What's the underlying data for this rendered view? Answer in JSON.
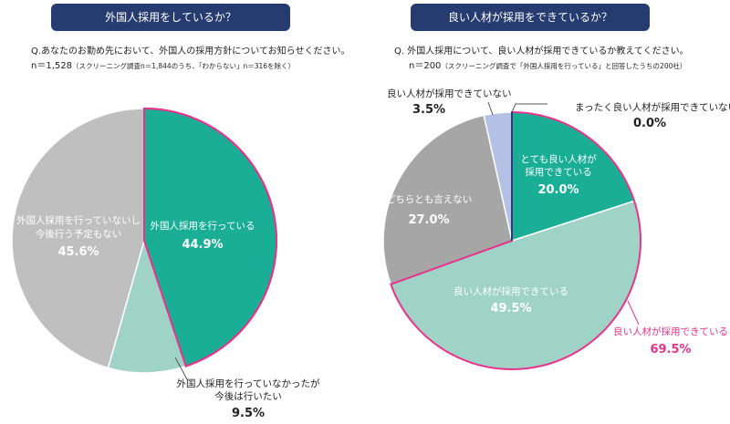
{
  "chart_data": [
    {
      "type": "pie",
      "title": "外国人採用をしているか？",
      "question": "Q.あなたのお勤め先において、外国人の採用方針についてお知らせください。",
      "n_main": "n＝1,528",
      "n_note": "（スクリーニング調査n＝1,844のうち、「わからない」n＝316を除く）",
      "slices": [
        {
          "label": "外国人採用を行っている",
          "value": 44.9,
          "value_text": "44.9%",
          "color": "#1aae96"
        },
        {
          "label": "外国人採用を行っていなかったが今後は行いたい",
          "value": 9.5,
          "value_text": "9.5%",
          "color": "#9fd3c5"
        },
        {
          "label": "外国人採用を行っていないし今後行う予定もない",
          "value": 45.6,
          "value_text": "45.6%",
          "color": "#bfbfbf"
        }
      ],
      "highlight_color": "#e6338c"
    },
    {
      "type": "pie",
      "title": "良い人材が採用をできているか？",
      "question": "Q.  外国人採用について、良い人材が採用できているか教えてください。",
      "n_main": "n＝200",
      "n_note": "（スクリーニング調査で「外国人採用を行っている」と回答したうちの200社）",
      "slices": [
        {
          "label": "まったく良い人材が採用できていない",
          "value": 0.0,
          "value_text": "0.0%",
          "color": "#2a3a7a"
        },
        {
          "label": "とても良い人材が採用できている",
          "value": 20.0,
          "value_text": "20.0%",
          "color": "#1aae96"
        },
        {
          "label": "良い人材が採用できている",
          "value": 49.5,
          "value_text": "49.5%",
          "color": "#9fd3c5"
        },
        {
          "label": "どちらとも言えない",
          "value": 27.0,
          "value_text": "27.0%",
          "color": "#a6a6a6"
        },
        {
          "label": "良い人材が採用できていない",
          "value": 3.5,
          "value_text": "3.5%",
          "color": "#b4c0e4"
        }
      ],
      "group_label": "良い人材が採用できている",
      "group_value_text": "69.5%",
      "highlight_color": "#e6338c"
    }
  ]
}
